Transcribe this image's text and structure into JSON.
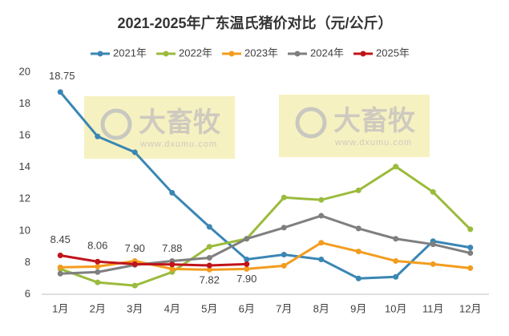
{
  "chart_data": {
    "type": "line",
    "title": "2021-2025年广东温氏猪价对比（元/公斤）",
    "categories": [
      "1月",
      "2月",
      "3月",
      "4月",
      "5月",
      "6月",
      "7月",
      "8月",
      "9月",
      "10月",
      "11月",
      "12月"
    ],
    "ylim": [
      6,
      20
    ],
    "yticks": [
      6,
      8,
      10,
      12,
      14,
      16,
      18,
      20
    ],
    "grid": false,
    "legend": "top",
    "watermark": {
      "brand": "大畜牧",
      "url": "www.dxumu.com"
    },
    "series": [
      {
        "name": "2021年",
        "color": "#3a86b4",
        "values": [
          18.75,
          15.95,
          14.95,
          12.4,
          10.25,
          8.2,
          8.5,
          8.2,
          7.0,
          7.1,
          9.35,
          8.95
        ],
        "value_labels": [
          "18.75",
          null,
          null,
          null,
          null,
          null,
          null,
          null,
          null,
          null,
          null,
          null
        ]
      },
      {
        "name": "2022年",
        "color": "#9bbb3c",
        "values": [
          7.6,
          6.75,
          6.55,
          7.4,
          9.0,
          9.5,
          12.1,
          11.95,
          12.55,
          14.05,
          12.45,
          10.1
        ]
      },
      {
        "name": "2023年",
        "color": "#f39c1e",
        "values": [
          7.7,
          7.75,
          8.1,
          7.6,
          7.55,
          7.6,
          7.8,
          9.25,
          8.7,
          8.1,
          7.9,
          7.65
        ]
      },
      {
        "name": "2024年",
        "color": "#7f7f7f",
        "values": [
          7.3,
          7.4,
          7.85,
          8.1,
          8.3,
          9.5,
          10.2,
          10.95,
          10.15,
          9.5,
          9.15,
          8.6
        ]
      },
      {
        "name": "2025年",
        "color": "#c0131a",
        "values": [
          8.45,
          8.06,
          7.9,
          7.88,
          7.82,
          7.9,
          null,
          null,
          null,
          null,
          null,
          null
        ],
        "value_labels": [
          "8.45",
          "8.06",
          "7.90",
          "7.88",
          "7.82",
          "7.90",
          null,
          null,
          null,
          null,
          null,
          null
        ]
      }
    ]
  }
}
